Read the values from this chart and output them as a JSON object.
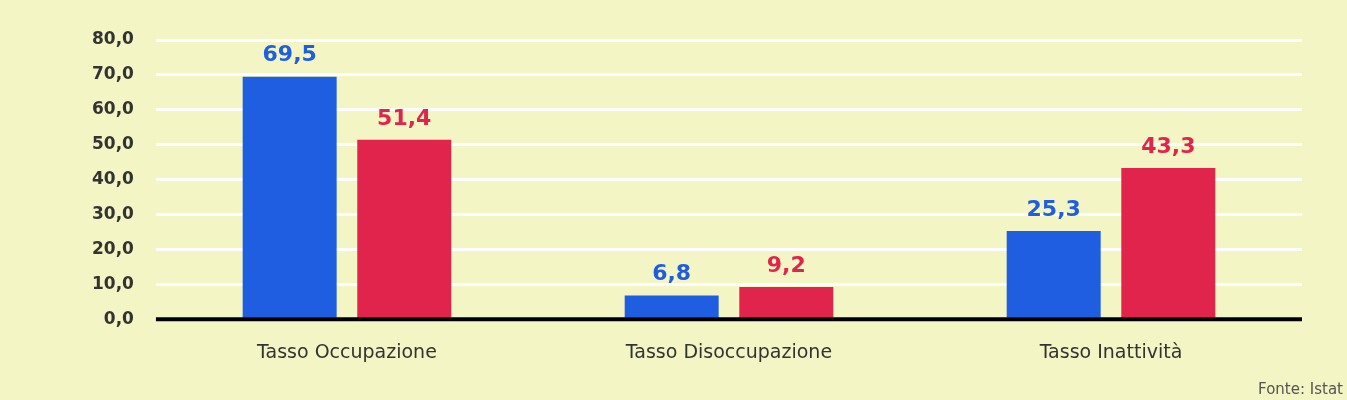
{
  "chart_data": {
    "type": "bar",
    "categories": [
      "Tasso Occupazione",
      "Tasso Disoccupazione",
      "Tasso Inattività"
    ],
    "series": [
      {
        "color": "#1f5ee0",
        "values": [
          69.5,
          6.8,
          25.3
        ],
        "value_labels": [
          "69,5",
          "6,8",
          "25,3"
        ]
      },
      {
        "color": "#e0244c",
        "values": [
          51.4,
          9.2,
          43.3
        ],
        "value_labels": [
          "51,4",
          "9,2",
          "43,3"
        ]
      }
    ],
    "ylim": [
      0,
      80
    ],
    "yticks": [
      {
        "value": 0,
        "label": "0,0"
      },
      {
        "value": 10,
        "label": "10,0"
      },
      {
        "value": 20,
        "label": "20,0"
      },
      {
        "value": 30,
        "label": "30,0"
      },
      {
        "value": 40,
        "label": "40,0"
      },
      {
        "value": 50,
        "label": "50,0"
      },
      {
        "value": 60,
        "label": "60,0"
      },
      {
        "value": 70,
        "label": "70,0"
      },
      {
        "value": 80,
        "label": "80,0"
      }
    ],
    "grid": "y",
    "legend": false,
    "annotations": [
      "Fonte: Istat"
    ]
  }
}
